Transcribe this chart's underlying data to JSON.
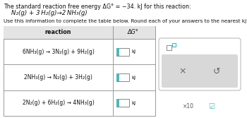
{
  "title_line1": "The standard reaction free energy ΔG° = −34. kJ for this reaction:",
  "title_line2": "N₂(g) + 3 H₂(g)→2 NH₃(g)",
  "subtitle": "Use this information to complete the table below. Round each of your answers to the nearest kJ.",
  "col_headers": [
    "reaction",
    "ΔG°"
  ],
  "rows": [
    "6NH₃(g) → 3N₂(g) + 9H₂(g)",
    "2NH₃(g) → N₂(g) + 3H₂(g)",
    "2N₂(g) + 6H₂(g) → 4NH₃(g)"
  ],
  "bg_color": "#ffffff",
  "table_border_color": "#999999",
  "header_bg": "#e4e4e4",
  "cell_bg": "#ffffff",
  "teal_color": "#4db8b8",
  "side_panel_border": "#bbbbbb",
  "side_panel_lower_bg": "#d8d8d8",
  "kj_label": "kJ",
  "title_fontsize": 5.8,
  "subtitle_fontsize": 5.2,
  "header_fontsize": 5.8,
  "row_fontsize": 5.5
}
